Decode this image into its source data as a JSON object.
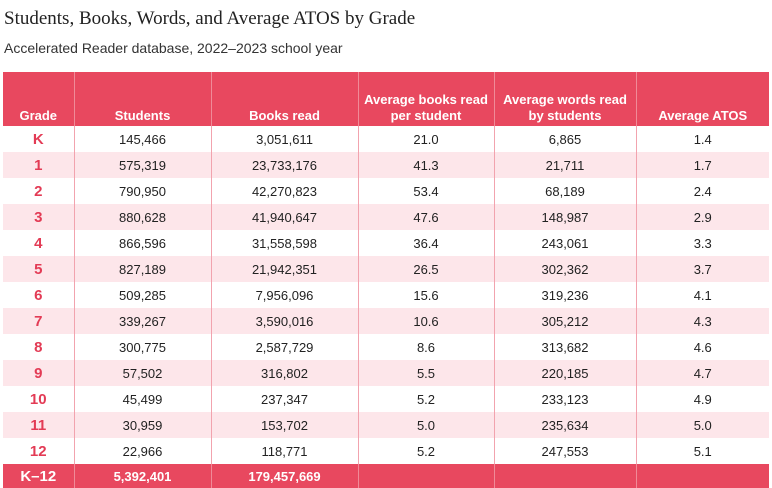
{
  "chart_data": {
    "type": "table",
    "title": "Students, Books, Words, and Average ATOS by Grade",
    "subtitle": "Accelerated Reader database, 2022–2023 school year",
    "columns": [
      "Grade",
      "Students",
      "Books read",
      "Average books read per student",
      "Average words read by students",
      "Average ATOS"
    ],
    "rows": [
      [
        "K",
        "145,466",
        "3,051,611",
        "21.0",
        "6,865",
        "1.4"
      ],
      [
        "1",
        "575,319",
        "23,733,176",
        "41.3",
        "21,711",
        "1.7"
      ],
      [
        "2",
        "790,950",
        "42,270,823",
        "53.4",
        "68,189",
        "2.4"
      ],
      [
        "3",
        "880,628",
        "41,940,647",
        "47.6",
        "148,987",
        "2.9"
      ],
      [
        "4",
        "866,596",
        "31,558,598",
        "36.4",
        "243,061",
        "3.3"
      ],
      [
        "5",
        "827,189",
        "21,942,351",
        "26.5",
        "302,362",
        "3.7"
      ],
      [
        "6",
        "509,285",
        "7,956,096",
        "15.6",
        "319,236",
        "4.1"
      ],
      [
        "7",
        "339,267",
        "3,590,016",
        "10.6",
        "305,212",
        "4.3"
      ],
      [
        "8",
        "300,775",
        "2,587,729",
        "8.6",
        "313,682",
        "4.6"
      ],
      [
        "9",
        "57,502",
        "316,802",
        "5.5",
        "220,185",
        "4.7"
      ],
      [
        "10",
        "45,499",
        "237,347",
        "5.2",
        "233,123",
        "4.9"
      ],
      [
        "11",
        "30,959",
        "153,702",
        "5.0",
        "235,634",
        "5.0"
      ],
      [
        "12",
        "22,966",
        "118,771",
        "5.2",
        "247,553",
        "5.1"
      ]
    ],
    "total": [
      "K–12",
      "5,392,401",
      "179,457,669",
      "",
      "",
      ""
    ]
  },
  "colors": {
    "header": "#e8485f",
    "stripe": "#fde6ea",
    "grade_text": "#e33b55"
  }
}
